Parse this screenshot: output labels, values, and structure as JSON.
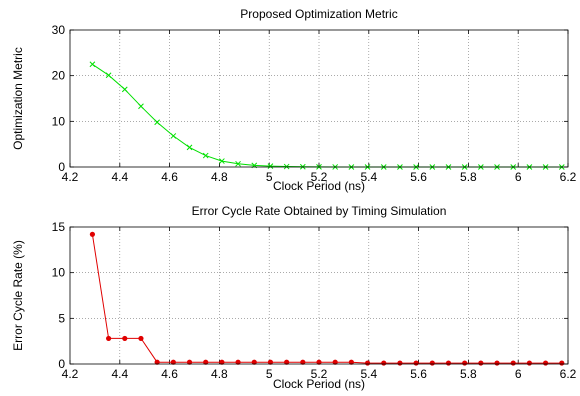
{
  "chart_data": [
    {
      "type": "line",
      "title": "Proposed Optimization Metric",
      "xlabel": "Clock Period (ns)",
      "ylabel": "Optimization Metric",
      "xlim": [
        4.2,
        6.2
      ],
      "ylim": [
        0,
        30
      ],
      "xticks": [
        "4.2",
        "4.4",
        "4.6",
        "4.8",
        "5",
        "5.2",
        "5.4",
        "5.6",
        "5.8",
        "6",
        "6.2"
      ],
      "yticks": [
        "0",
        "10",
        "20",
        "30"
      ],
      "grid": true,
      "series": [
        {
          "color": "#00e000",
          "marker": "x",
          "x": [
            4.29,
            4.355,
            4.42,
            4.485,
            4.55,
            4.615,
            4.68,
            4.745,
            4.81,
            4.875,
            4.94,
            5.005,
            5.07,
            5.135,
            5.2,
            5.265,
            5.33,
            5.395,
            5.46,
            5.525,
            5.59,
            5.655,
            5.72,
            5.785,
            5.85,
            5.915,
            5.98,
            6.045,
            6.11,
            6.175
          ],
          "y": [
            22.5,
            20.1,
            17.0,
            13.3,
            9.8,
            6.8,
            4.3,
            2.5,
            1.3,
            0.7,
            0.35,
            0.2,
            0.1,
            0.05,
            0.02,
            0.01,
            0.005,
            0,
            0,
            0,
            0,
            0,
            0,
            0,
            0,
            0,
            0,
            0,
            0,
            0
          ]
        }
      ]
    },
    {
      "type": "line",
      "title": "Error Cycle Rate Obtained by Timing Simulation",
      "xlabel": "Clock Period (ns)",
      "ylabel": "Error Cycle Rate (%)",
      "xlim": [
        4.2,
        6.2
      ],
      "ylim": [
        0,
        15
      ],
      "xticks": [
        "4.2",
        "4.4",
        "4.6",
        "4.8",
        "5",
        "5.2",
        "5.4",
        "5.6",
        "5.8",
        "6",
        "6.2"
      ],
      "yticks": [
        "0",
        "5",
        "10",
        "15"
      ],
      "grid": true,
      "series": [
        {
          "color": "#e00000",
          "marker": "dot",
          "x": [
            4.29,
            4.355,
            4.42,
            4.485,
            4.55,
            4.615,
            4.68,
            4.745,
            4.81,
            4.875,
            4.94,
            5.005,
            5.07,
            5.135,
            5.2,
            5.265,
            5.33,
            5.395,
            5.46,
            5.525,
            5.59,
            5.655,
            5.72,
            5.785,
            5.85,
            5.915,
            5.98,
            6.045,
            6.11,
            6.175
          ],
          "y": [
            14.2,
            2.8,
            2.8,
            2.8,
            0.2,
            0.2,
            0.2,
            0.2,
            0.2,
            0.2,
            0.2,
            0.2,
            0.2,
            0.2,
            0.2,
            0.2,
            0.2,
            0.1,
            0.1,
            0.1,
            0.1,
            0.1,
            0.1,
            0.1,
            0.1,
            0.1,
            0.1,
            0.1,
            0.1,
            0.1
          ]
        }
      ]
    }
  ]
}
